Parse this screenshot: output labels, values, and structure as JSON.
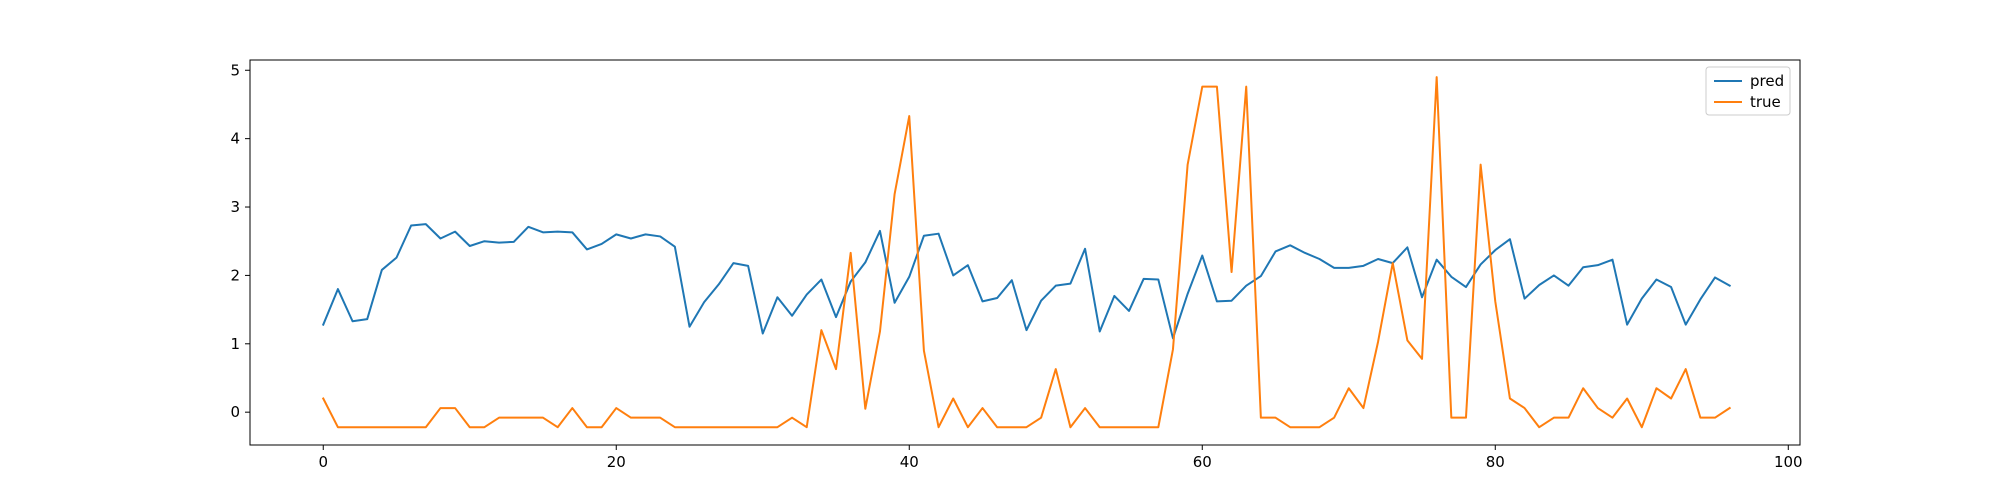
{
  "chart_data": {
    "type": "line",
    "title": "",
    "xlabel": "",
    "ylabel": "",
    "xlim": [
      -5,
      100.8
    ],
    "ylim": [
      -0.48,
      5.15
    ],
    "xticks": [
      0,
      20,
      40,
      60,
      80,
      100
    ],
    "yticks": [
      0,
      1,
      2,
      3,
      4,
      5
    ],
    "grid": false,
    "legend": "top-right",
    "series": [
      {
        "name": "pred",
        "color": "#1f77b4",
        "values": [
          1.28,
          1.8,
          1.33,
          1.36,
          2.08,
          2.26,
          2.73,
          2.75,
          2.54,
          2.64,
          2.43,
          2.5,
          2.48,
          2.49,
          2.71,
          2.63,
          2.64,
          2.63,
          2.38,
          2.46,
          2.6,
          2.54,
          2.6,
          2.57,
          2.42,
          1.25,
          1.61,
          1.87,
          2.18,
          2.14,
          1.15,
          1.68,
          1.41,
          1.72,
          1.94,
          1.39,
          1.91,
          2.19,
          2.65,
          1.6,
          1.98,
          2.58,
          2.61,
          2.0,
          2.15,
          1.62,
          1.67,
          1.93,
          1.2,
          1.63,
          1.85,
          1.88,
          2.39,
          1.18,
          1.7,
          1.48,
          1.95,
          1.94,
          1.08,
          1.73,
          2.29,
          1.62,
          1.63,
          1.85,
          1.99,
          2.35,
          2.44,
          2.33,
          2.24,
          2.11,
          2.11,
          2.14,
          2.24,
          2.18,
          2.41,
          1.68,
          2.23,
          1.98,
          1.83,
          2.16,
          2.37,
          2.53,
          1.66,
          1.86,
          2.0,
          1.85,
          2.12,
          2.15,
          2.23,
          1.28,
          1.66,
          1.94,
          1.83,
          1.28,
          1.65,
          1.97,
          1.85
        ]
      },
      {
        "name": "true",
        "color": "#ff7f0e",
        "values": [
          0.2,
          -0.22,
          -0.22,
          -0.22,
          -0.22,
          -0.22,
          -0.22,
          -0.22,
          0.06,
          0.06,
          -0.22,
          -0.22,
          -0.08,
          -0.08,
          -0.08,
          -0.08,
          -0.22,
          0.06,
          -0.22,
          -0.22,
          0.06,
          -0.08,
          -0.08,
          -0.08,
          -0.22,
          -0.22,
          -0.22,
          -0.22,
          -0.22,
          -0.22,
          -0.22,
          -0.22,
          -0.08,
          -0.22,
          1.2,
          0.63,
          2.33,
          0.05,
          1.18,
          3.19,
          4.33,
          0.9,
          -0.22,
          0.2,
          -0.22,
          0.06,
          -0.22,
          -0.22,
          -0.22,
          -0.08,
          0.63,
          -0.22,
          0.06,
          -0.22,
          -0.22,
          -0.22,
          -0.22,
          -0.22,
          0.92,
          3.62,
          4.76,
          4.76,
          2.05,
          4.76,
          -0.08,
          -0.08,
          -0.22,
          -0.22,
          -0.22,
          -0.08,
          0.35,
          0.06,
          1.03,
          2.18,
          1.05,
          0.78,
          4.9,
          -0.08,
          -0.08,
          3.62,
          1.62,
          0.2,
          0.06,
          -0.22,
          -0.08,
          -0.08,
          0.35,
          0.06,
          -0.08,
          0.2,
          -0.22,
          0.35,
          0.2,
          0.63,
          -0.08,
          -0.08,
          0.06
        ]
      }
    ]
  }
}
